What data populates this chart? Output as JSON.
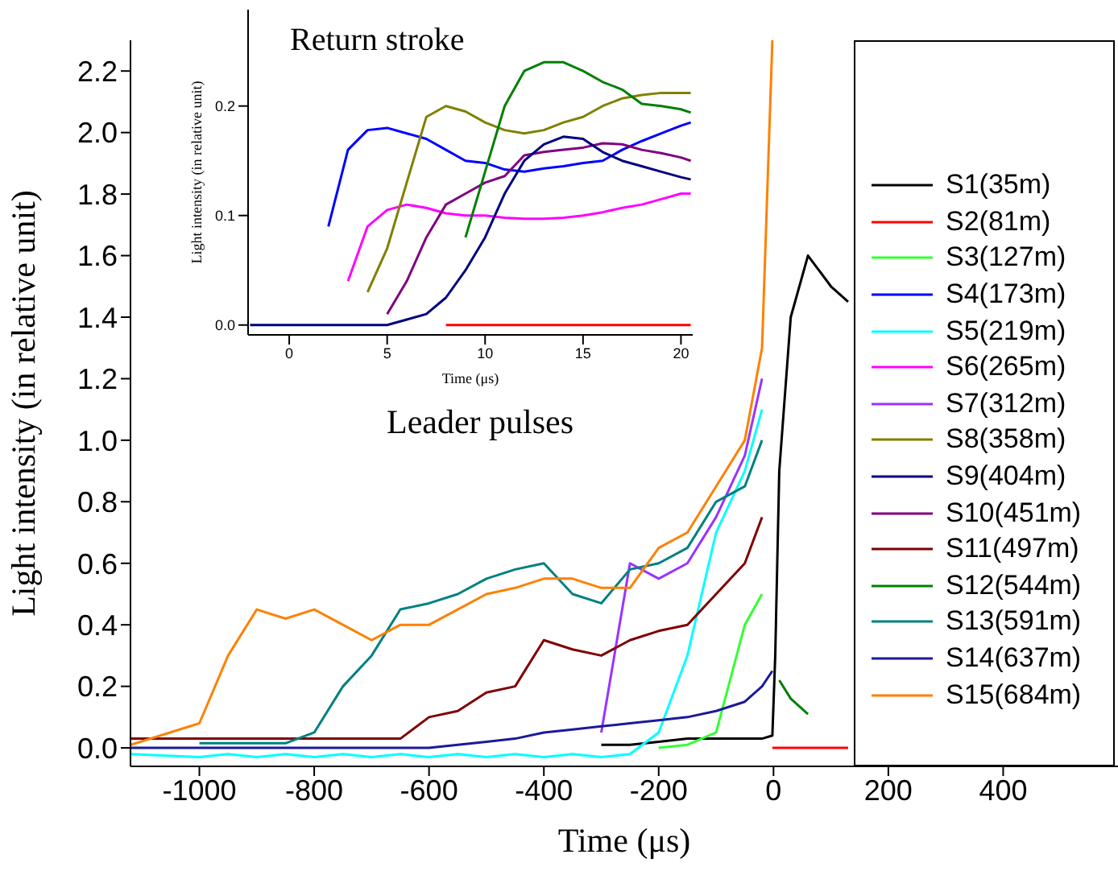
{
  "chart_data": [
    {
      "type": "line",
      "xlabel": "Time (μs)",
      "ylabel": "Light intensity (in relative unit)",
      "annotations": [
        "Leader pulses"
      ],
      "x": [
        -1120,
        -1000,
        -950,
        -900,
        -850,
        -800,
        -750,
        -700,
        -650,
        -600,
        -550,
        -500,
        -450,
        -400,
        -350,
        -300,
        -250,
        -200,
        -150,
        -100,
        -50,
        -20,
        -2,
        3,
        10,
        30,
        60,
        100,
        130
      ],
      "series": [
        {
          "name": "S1(35m)",
          "color": "#000000",
          "values": [
            null,
            null,
            null,
            null,
            null,
            null,
            null,
            null,
            null,
            null,
            null,
            null,
            null,
            null,
            null,
            0.01,
            0.01,
            0.02,
            0.03,
            0.03,
            0.03,
            0.03,
            0.04,
            0.3,
            0.9,
            1.4,
            1.6,
            1.5,
            1.45
          ]
        },
        {
          "name": "S2(81m)",
          "color": "#ff0000",
          "values": [
            null,
            null,
            null,
            null,
            null,
            null,
            null,
            null,
            null,
            null,
            null,
            null,
            null,
            null,
            null,
            null,
            null,
            null,
            null,
            null,
            null,
            null,
            0,
            0,
            0,
            0,
            0,
            0,
            0
          ]
        },
        {
          "name": "S3(127m)",
          "color": "#33ff33",
          "values": [
            null,
            null,
            null,
            null,
            null,
            null,
            null,
            null,
            null,
            null,
            null,
            null,
            null,
            null,
            null,
            null,
            null,
            0,
            0.01,
            0.05,
            0.4,
            0.5,
            null,
            null,
            null,
            null,
            null,
            null,
            null
          ]
        },
        {
          "name": "S4(173m)",
          "color": "#0000ff",
          "values": [
            null,
            null,
            null,
            null,
            null,
            null,
            null,
            null,
            null,
            null,
            null,
            null,
            null,
            null,
            null,
            null,
            null,
            null,
            null,
            null,
            null,
            null,
            null,
            null,
            null,
            null,
            null,
            null,
            null
          ]
        },
        {
          "name": "S5(219m)",
          "color": "#00ffff",
          "values": [
            -0.02,
            -0.03,
            -0.02,
            -0.03,
            -0.02,
            -0.03,
            -0.02,
            -0.03,
            -0.02,
            -0.03,
            -0.02,
            -0.03,
            -0.02,
            -0.03,
            -0.02,
            -0.03,
            -0.02,
            0.05,
            0.3,
            0.7,
            0.9,
            1.1,
            null,
            null,
            null,
            null,
            null,
            null,
            null
          ]
        },
        {
          "name": "S6(265m)",
          "color": "#ff00ff",
          "values": [
            null,
            null,
            null,
            null,
            null,
            null,
            null,
            null,
            null,
            null,
            null,
            null,
            null,
            null,
            null,
            null,
            null,
            null,
            null,
            null,
            null,
            null,
            null,
            null,
            null,
            null,
            null,
            null,
            null
          ]
        },
        {
          "name": "S7(312m)",
          "color": "#9933ff",
          "values": [
            null,
            null,
            null,
            null,
            null,
            null,
            null,
            null,
            null,
            null,
            null,
            null,
            null,
            null,
            null,
            0.05,
            0.6,
            0.55,
            0.6,
            0.75,
            0.95,
            1.2,
            null,
            null,
            null,
            null,
            null,
            null,
            null
          ]
        },
        {
          "name": "S8(358m)",
          "color": "#808000",
          "values": [
            null,
            null,
            null,
            null,
            null,
            null,
            null,
            null,
            null,
            null,
            null,
            null,
            null,
            null,
            null,
            null,
            null,
            null,
            null,
            null,
            null,
            null,
            null,
            null,
            null,
            null,
            null,
            null,
            null
          ]
        },
        {
          "name": "S9(404m)",
          "color": "#000080",
          "values": [
            null,
            null,
            null,
            null,
            null,
            null,
            null,
            null,
            null,
            null,
            null,
            null,
            null,
            null,
            null,
            null,
            null,
            null,
            null,
            null,
            null,
            null,
            null,
            null,
            null,
            null,
            null,
            null,
            null
          ]
        },
        {
          "name": "S10(451m)",
          "color": "#800080",
          "values": [
            null,
            null,
            null,
            null,
            null,
            null,
            null,
            null,
            null,
            null,
            null,
            null,
            null,
            null,
            null,
            null,
            null,
            null,
            null,
            null,
            null,
            null,
            null,
            null,
            null,
            null,
            null,
            null,
            null
          ]
        },
        {
          "name": "S11(497m)",
          "color": "#800000",
          "values": [
            0.03,
            0.03,
            0.03,
            0.03,
            0.03,
            0.03,
            0.03,
            0.03,
            0.03,
            0.1,
            0.12,
            0.18,
            0.2,
            0.35,
            0.32,
            0.3,
            0.35,
            0.38,
            0.4,
            0.5,
            0.6,
            0.75,
            null,
            null,
            null,
            null,
            null,
            null,
            null
          ]
        },
        {
          "name": "S12(544m)",
          "color": "#008000",
          "values": [
            null,
            null,
            null,
            null,
            null,
            null,
            null,
            null,
            null,
            null,
            null,
            null,
            null,
            null,
            null,
            null,
            null,
            null,
            null,
            null,
            null,
            null,
            null,
            null,
            0.22,
            0.16,
            0.11,
            null,
            null
          ]
        },
        {
          "name": "S13(591m)",
          "color": "#008080",
          "values": [
            null,
            0.015,
            0.015,
            0.015,
            0.015,
            0.05,
            0.2,
            0.3,
            0.45,
            0.47,
            0.5,
            0.55,
            0.58,
            0.6,
            0.5,
            0.47,
            0.58,
            0.6,
            0.65,
            0.8,
            0.85,
            1.0,
            null,
            null,
            null,
            null,
            null,
            null,
            null
          ]
        },
        {
          "name": "S14(637m)",
          "color": "#1a1a99",
          "values": [
            0,
            0,
            0,
            0,
            0,
            0,
            0,
            0,
            0,
            0,
            0.01,
            0.02,
            0.03,
            0.05,
            0.06,
            0.07,
            0.08,
            0.09,
            0.1,
            0.12,
            0.15,
            0.2,
            0.25,
            null,
            null,
            null,
            null,
            null,
            null
          ]
        },
        {
          "name": "S15(684m)",
          "color": "#ff8000",
          "values": [
            0.01,
            0.08,
            0.3,
            0.45,
            0.42,
            0.45,
            0.4,
            0.35,
            0.4,
            0.4,
            0.45,
            0.5,
            0.52,
            0.55,
            0.55,
            0.52,
            0.52,
            0.65,
            0.7,
            0.85,
            1.0,
            1.3,
            2.3,
            null,
            null,
            null,
            null,
            null,
            null
          ]
        }
      ],
      "xlim": [
        -1120,
        600
      ],
      "xticks": [
        -1000,
        -800,
        -600,
        -400,
        -200,
        0,
        200,
        400
      ],
      "ylim": [
        -0.06,
        2.3
      ],
      "yticks": [
        {
          "value": 0,
          "label": "0.0"
        },
        {
          "value": 0.2,
          "label": "0.2"
        },
        {
          "value": 0.4,
          "label": "0.4"
        },
        {
          "value": 0.6,
          "label": "0.6"
        },
        {
          "value": 0.8,
          "label": "0.8"
        },
        {
          "value": 1,
          "label": "1.0"
        },
        {
          "value": 1.2,
          "label": "1.2"
        },
        {
          "value": 1.4,
          "label": "1.4"
        },
        {
          "value": 1.6,
          "label": "1.6"
        },
        {
          "value": 1.8,
          "label": "1.8"
        },
        {
          "value": 2,
          "label": "2.0"
        },
        {
          "value": 2.2,
          "label": "2.2"
        }
      ],
      "legend": "right",
      "marker": "none",
      "line_style": "solid"
    },
    {
      "type": "line",
      "xlabel": "Time (μs)",
      "ylabel": "Light intensity (in relative unit)",
      "annotations": [
        "Return stroke"
      ],
      "x": [
        -2,
        0,
        1,
        2,
        3,
        4,
        5,
        6,
        7,
        8,
        9,
        10,
        11,
        12,
        13,
        14,
        15,
        16,
        17,
        18,
        19,
        20,
        20.5
      ],
      "series": [
        {
          "color": "#ff0000",
          "values": [
            null,
            null,
            null,
            null,
            null,
            null,
            null,
            null,
            null,
            0,
            0,
            0,
            0,
            0,
            0,
            0,
            0,
            0,
            0,
            0,
            0,
            0,
            0
          ]
        },
        {
          "color": "#0000ff",
          "values": [
            null,
            null,
            null,
            0.09,
            0.16,
            0.178,
            0.18,
            0.175,
            0.17,
            0.16,
            0.15,
            0.148,
            0.142,
            0.14,
            0.143,
            0.145,
            0.148,
            0.15,
            0.16,
            0.168,
            0.175,
            0.182,
            0.185
          ]
        },
        {
          "color": "#ff00ff",
          "values": [
            null,
            null,
            null,
            null,
            0.04,
            0.09,
            0.105,
            0.11,
            0.107,
            0.102,
            0.1,
            0.1,
            0.098,
            0.097,
            0.097,
            0.098,
            0.1,
            0.103,
            0.107,
            0.11,
            0.115,
            0.12,
            0.12
          ]
        },
        {
          "color": "#808000",
          "values": [
            null,
            null,
            null,
            null,
            null,
            0.03,
            0.07,
            0.13,
            0.19,
            0.2,
            0.195,
            0.185,
            0.178,
            0.175,
            0.178,
            0.185,
            0.19,
            0.2,
            0.207,
            0.21,
            0.212,
            0.212,
            0.212
          ]
        },
        {
          "color": "#800080",
          "values": [
            null,
            null,
            null,
            null,
            null,
            null,
            0.01,
            0.04,
            0.08,
            0.11,
            0.12,
            0.13,
            0.136,
            0.155,
            0.158,
            0.16,
            0.162,
            0.166,
            0.165,
            0.16,
            0.157,
            0.153,
            0.15
          ]
        },
        {
          "color": "#008000",
          "values": [
            null,
            null,
            null,
            null,
            null,
            null,
            null,
            null,
            null,
            null,
            0.08,
            0.14,
            0.2,
            0.232,
            0.24,
            0.24,
            0.232,
            0.222,
            0.215,
            0.202,
            0.2,
            0.197,
            0.194
          ]
        },
        {
          "color": "#000080",
          "values": [
            0,
            0,
            0,
            0,
            0,
            0,
            0,
            0.005,
            0.01,
            0.025,
            0.05,
            0.08,
            0.12,
            0.15,
            0.165,
            0.172,
            0.17,
            0.158,
            0.15,
            0.145,
            0.14,
            0.135,
            0.133
          ]
        }
      ],
      "xlim": [
        -2.1,
        20.6
      ],
      "xticks": [
        0,
        5,
        10,
        15,
        20
      ],
      "ylim": [
        -0.009,
        0.288
      ],
      "yticks": [
        {
          "value": 0,
          "label": "0.0"
        },
        {
          "value": 0.1,
          "label": "0.1"
        },
        {
          "value": 0.2,
          "label": "0.2"
        }
      ],
      "marker": "none",
      "line_style": "solid"
    }
  ]
}
